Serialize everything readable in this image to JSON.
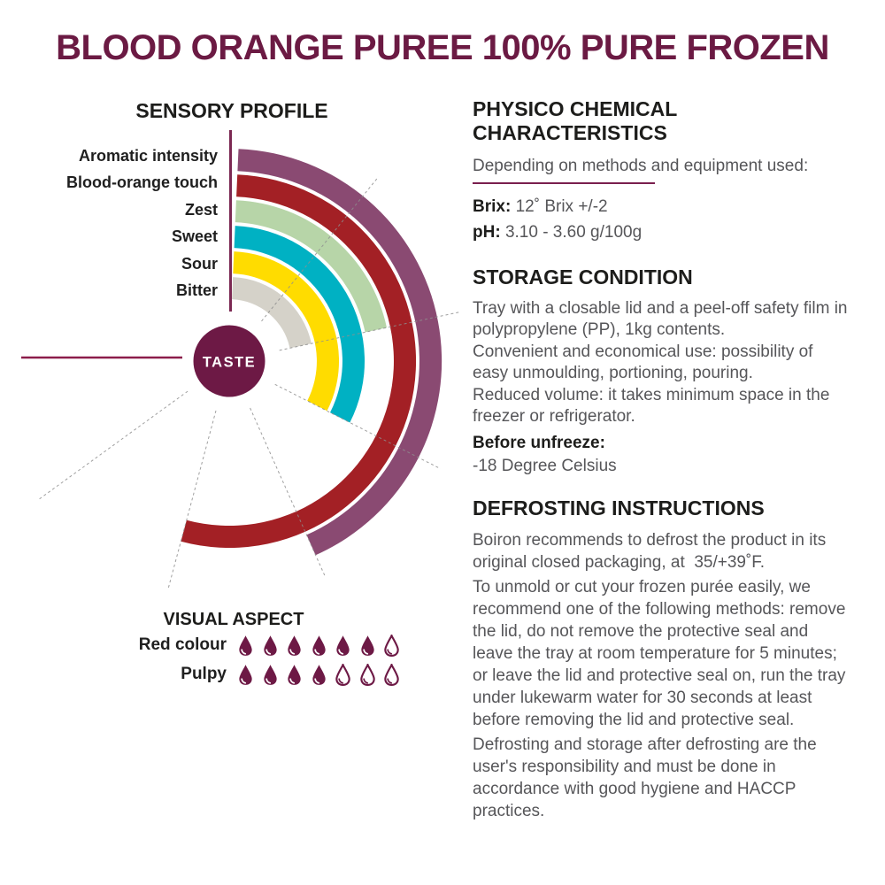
{
  "page": {
    "title": "BLOOD ORANGE PUREE 100% PURE FROZEN"
  },
  "colors": {
    "title_maroon": "#6b1a43",
    "taste_circle_maroon": "#6d1945",
    "horizontal_line_red": "#8c1d4a",
    "vertical_line_maroon": "#7b2852",
    "underline_maroon": "#7a1f4e",
    "heading_text": "#1d1d1b",
    "body_text": "#565659",
    "gridline_gray": "#8f8f8f"
  },
  "chart_data": {
    "type": "radial-bar",
    "title": "SENSORY PROFILE",
    "center_label": "TASTE",
    "categories": [
      "Aromatic intensity",
      "Blood-orange touch",
      "Zest",
      "Sweet",
      "Sour",
      "Bitter"
    ],
    "values": [
      4,
      5,
      2,
      3,
      3,
      2
    ],
    "scale_max": 7,
    "degrees_per_unit": 39,
    "start_angle_deg": 2.5,
    "colors": [
      "#8a4a72",
      "#a32025",
      "#b7d5a8",
      "#00b1c3",
      "#ffdc00",
      "#d5d2c9"
    ],
    "gridline_angles_deg": [
      39,
      78,
      117,
      156,
      195,
      234
    ],
    "legend_position": "left",
    "notes": "Rings sweep clockwise from top; outermost ring = first category"
  },
  "visual_aspect": {
    "heading": "VISUAL ASPECT",
    "drop_color": "#6d1945",
    "rows": [
      {
        "label": "Red colour",
        "filled": 6,
        "total": 7
      },
      {
        "label": "Pulpy",
        "filled": 4,
        "total": 7
      }
    ]
  },
  "physico": {
    "heading_line1": "PHYSICO CHEMICAL",
    "heading_line2": "CHARACTERISTICS",
    "subtitle": "Depending on methods and equipment used:",
    "brix_label": "Brix:",
    "brix_value": "12˚ Brix +/-2",
    "ph_label": "pH:",
    "ph_value": "3.10 - 3.60 g/100g"
  },
  "storage": {
    "heading": "STORAGE CONDITION",
    "paragraphs": [
      "Tray with a closable lid and a peel-off safety film in polypropylene (PP), 1kg contents.",
      "Convenient and economical use: possibility of easy unmoulding, portioning, pouring.",
      "Reduced volume: it takes minimum space in the freezer or refrigerator."
    ],
    "before_label": "Before unfreeze:",
    "before_value": "-18 Degree Celsius"
  },
  "defrosting": {
    "heading": "DEFROSTING INSTRUCTIONS",
    "paragraphs": [
      "Boiron recommends to defrost the product in its original closed packaging, at  35/+39˚F.",
      "To unmold or cut your frozen purée easily, we recommend one of the following methods: remove the lid, do not remove the protective seal and leave the tray at room temperature for 5 minutes; or leave the lid and protective seal on, run the tray under lukewarm water for 30 seconds at least before removing the lid and protective seal.",
      "Defrosting and storage after defrosting are the user's responsibility and must be done in accordance with good hygiene and HACCP practices."
    ]
  }
}
